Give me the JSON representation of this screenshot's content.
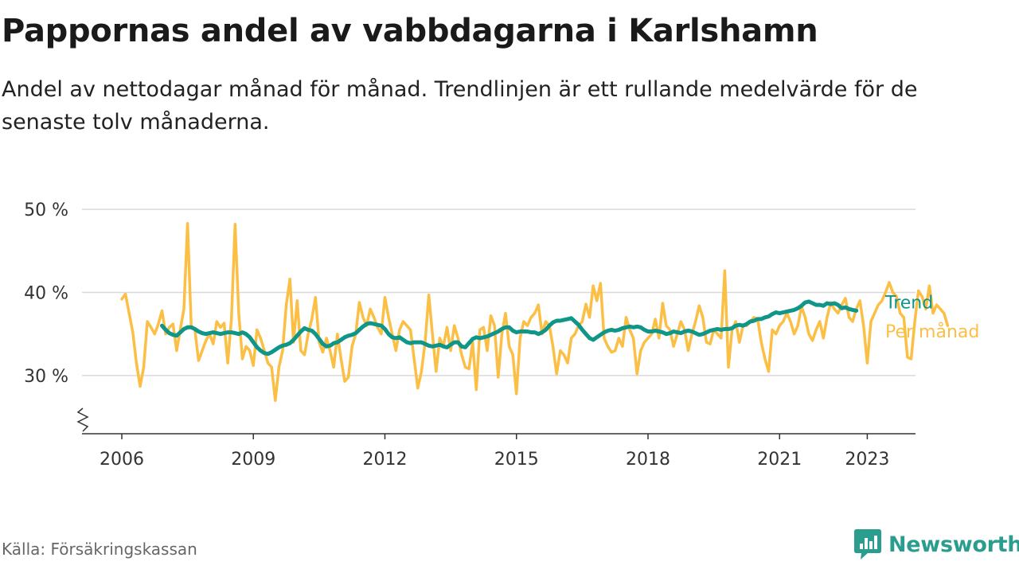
{
  "title": "Pappornas andel av vabbdagarna i Karlshamn",
  "subtitle": "Andel av nettodagar månad för månad. Trendlinjen är ett rullande medelvärde för de senaste tolv månaderna.",
  "source": "Källa: Försäkringskassan",
  "brand": "Newsworthy",
  "colors": {
    "monthly": "#fbbf45",
    "trend": "#0f9688",
    "grid": "#d9d9d9",
    "axis": "#333333",
    "brand": "#2a9d8f"
  },
  "chart_data": {
    "type": "line",
    "xlim": [
      2006,
      2024.1
    ],
    "ylim": [
      23,
      50
    ],
    "y_ticks": [
      30,
      40,
      50
    ],
    "y_tick_labels": [
      "30 %",
      "40 %",
      "50 %"
    ],
    "x_ticks": [
      2006,
      2009,
      2012,
      2015,
      2018,
      2021,
      2023
    ],
    "x_tick_labels": [
      "2006",
      "2009",
      "2012",
      "2015",
      "2018",
      "2021",
      "2023"
    ],
    "grid": true,
    "y_axis_break": true,
    "series": [
      {
        "name": "Per månad",
        "start": 2006.0,
        "step_months": 1,
        "values": [
          39.2,
          39.8,
          37.5,
          35.2,
          31.5,
          28.7,
          31.0,
          36.5,
          35.8,
          35.0,
          36.2,
          37.8,
          35.0,
          35.8,
          36.2,
          33.0,
          35.5,
          38.0,
          48.3,
          36.0,
          35.5,
          31.8,
          33.0,
          34.2,
          35.0,
          33.8,
          36.5,
          35.8,
          36.3,
          31.5,
          36.8,
          48.2,
          37.5,
          32.0,
          33.5,
          33.0,
          31.2,
          35.5,
          34.5,
          33.0,
          31.5,
          31.0,
          27.0,
          31.0,
          33.0,
          38.5,
          41.6,
          34.0,
          39.0,
          33.0,
          32.5,
          35.0,
          36.8,
          39.4,
          34.0,
          32.8,
          34.5,
          33.0,
          31.0,
          35.0,
          32.0,
          29.3,
          29.8,
          33.5,
          35.0,
          38.8,
          37.0,
          36.0,
          38.0,
          37.0,
          35.8,
          35.0,
          39.4,
          37.0,
          35.0,
          33.0,
          35.5,
          36.5,
          36.0,
          35.5,
          32.0,
          28.5,
          30.5,
          34.0,
          39.7,
          35.0,
          30.5,
          34.5,
          33.5,
          35.8,
          33.0,
          36.0,
          34.5,
          32.5,
          31.0,
          30.8,
          34.0,
          28.3,
          35.5,
          35.8,
          33.0,
          37.2,
          36.0,
          29.8,
          35.0,
          37.5,
          33.5,
          32.5,
          27.8,
          34.5,
          36.5,
          36.0,
          37.0,
          37.5,
          38.5,
          35.0,
          36.5,
          36.0,
          33.5,
          30.2,
          33.0,
          32.5,
          31.5,
          34.5,
          35.0,
          36.0,
          36.5,
          38.6,
          37.0,
          40.8,
          39.0,
          41.1,
          34.5,
          33.5,
          32.8,
          33.0,
          34.5,
          33.5,
          37.0,
          35.5,
          34.5,
          30.2,
          33.0,
          34.0,
          34.5,
          35.0,
          36.8,
          34.5,
          38.7,
          36.0,
          35.5,
          33.5,
          35.0,
          36.5,
          35.5,
          33.0,
          35.0,
          36.5,
          38.4,
          37.0,
          34.0,
          33.8,
          35.5,
          35.0,
          34.5,
          42.6,
          31.0,
          35.5,
          36.5,
          34.0,
          36.0,
          36.0,
          36.5,
          37.0,
          36.8,
          34.0,
          32.0,
          30.5,
          35.5,
          35.0,
          36.0,
          36.5,
          37.5,
          36.5,
          35.0,
          36.0,
          38.3,
          37.0,
          35.0,
          34.2,
          35.5,
          36.5,
          34.5,
          37.0,
          38.8,
          38.0,
          37.5,
          38.5,
          39.3,
          37.0,
          36.5,
          38.0,
          39.0,
          36.0,
          31.5,
          36.5,
          37.5,
          38.5,
          39.0,
          40.0,
          41.2,
          40.0,
          39.5,
          37.5,
          37.0,
          32.2,
          32.0,
          36.5,
          40.2,
          39.5,
          38.0,
          40.8,
          37.5,
          38.5,
          38.0,
          37.5,
          36.0
        ]
      },
      {
        "name": "Trend",
        "start": 2006.917,
        "step_months": 1,
        "values": [
          36.0,
          35.5,
          35.1,
          34.9,
          34.8,
          35.2,
          35.6,
          35.8,
          35.8,
          35.6,
          35.3,
          35.1,
          35.0,
          35.1,
          35.2,
          35.1,
          35.0,
          35.1,
          35.2,
          35.2,
          35.1,
          35.0,
          35.2,
          35.0,
          34.6,
          34.0,
          33.4,
          33.0,
          32.7,
          32.6,
          32.8,
          33.1,
          33.4,
          33.6,
          33.7,
          33.9,
          34.3,
          34.8,
          35.3,
          35.7,
          35.5,
          35.4,
          35.0,
          34.4,
          33.8,
          33.5,
          33.6,
          33.9,
          34.0,
          34.3,
          34.6,
          34.8,
          34.9,
          35.1,
          35.5,
          35.9,
          36.2,
          36.3,
          36.2,
          36.1,
          36.0,
          35.6,
          35.0,
          34.6,
          34.5,
          34.6,
          34.3,
          34.0,
          33.9,
          34.0,
          34.0,
          34.0,
          33.8,
          33.6,
          33.5,
          33.6,
          33.7,
          33.5,
          33.4,
          33.7,
          34.0,
          34.0,
          33.5,
          33.4,
          33.9,
          34.4,
          34.6,
          34.5,
          34.6,
          34.7,
          34.9,
          35.1,
          35.3,
          35.6,
          35.8,
          35.8,
          35.4,
          35.2,
          35.3,
          35.3,
          35.3,
          35.2,
          35.2,
          35.0,
          35.2,
          35.5,
          36.0,
          36.4,
          36.6,
          36.6,
          36.7,
          36.8,
          36.9,
          36.5,
          36.1,
          35.5,
          35.0,
          34.5,
          34.3,
          34.6,
          34.9,
          35.2,
          35.4,
          35.5,
          35.4,
          35.5,
          35.7,
          35.8,
          35.9,
          35.8,
          35.9,
          35.8,
          35.5,
          35.3,
          35.3,
          35.4,
          35.3,
          35.2,
          35.0,
          35.1,
          35.3,
          35.2,
          35.1,
          35.3,
          35.4,
          35.3,
          35.1,
          34.9,
          35.0,
          35.2,
          35.4,
          35.5,
          35.6,
          35.5,
          35.6,
          35.6,
          35.7,
          36.0,
          36.1,
          36.0,
          36.2,
          36.5,
          36.6,
          36.8,
          36.8,
          37.0,
          37.1,
          37.4,
          37.6,
          37.5,
          37.6,
          37.7,
          37.8,
          37.9,
          38.1,
          38.4,
          38.8,
          38.9,
          38.7,
          38.5,
          38.5,
          38.4,
          38.7,
          38.6,
          38.7,
          38.5,
          38.1,
          38.2,
          38.0,
          37.9,
          37.8
        ]
      }
    ]
  }
}
